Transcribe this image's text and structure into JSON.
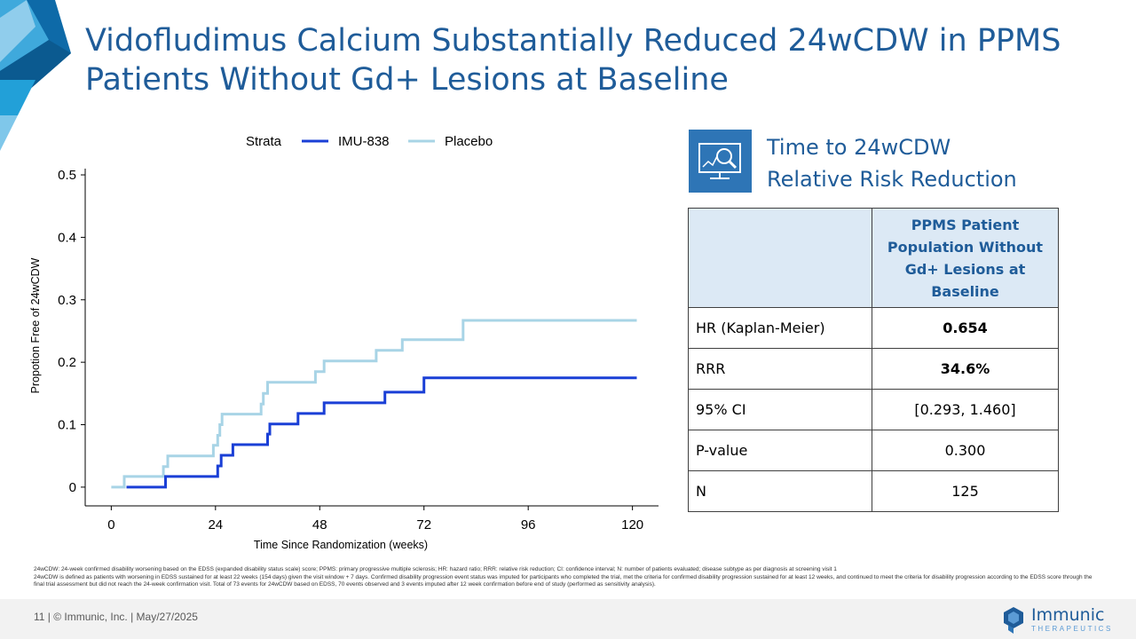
{
  "slide": {
    "title": "Vidofludimus Calcium Substantially Reduced 24wCDW in PPMS Patients Without Gd+ Lesions at Baseline"
  },
  "panel": {
    "title_line1": "Time to 24wCDW",
    "title_line2": "Relative Risk Reduction",
    "icon": "monitor-magnifier-icon"
  },
  "table": {
    "header_col2": "PPMS Patient Population Without Gd+ Lesions at Baseline",
    "rows": [
      {
        "label": "HR (Kaplan-Meier)",
        "value": "0.654",
        "bold": true
      },
      {
        "label": "RRR",
        "value": "34.6%",
        "bold": true
      },
      {
        "label": "95% CI",
        "value": "[0.293, 1.460]",
        "bold": false
      },
      {
        "label": "P-value",
        "value": "0.300",
        "bold": false
      },
      {
        "label": "N",
        "value": "125",
        "bold": false
      }
    ]
  },
  "chart_data": {
    "type": "line",
    "step": true,
    "legend_title": "Strata",
    "legend_position": "top",
    "xlabel": "Time Since Randomization (weeks)",
    "ylabel": "Propotion Free of 24wCDW",
    "xlim": [
      -6,
      126
    ],
    "ylim": [
      -0.03,
      0.51
    ],
    "xticks": [
      0,
      24,
      48,
      72,
      96,
      120
    ],
    "xtick_labels": [
      "0",
      "24",
      "48",
      "72",
      "96",
      "120"
    ],
    "yticks": [
      0,
      0.1,
      0.2,
      0.3,
      0.4,
      0.5
    ],
    "ytick_labels": [
      "0",
      "0.1",
      "0.2",
      "0.3",
      "0.4",
      "0.5"
    ],
    "series": [
      {
        "name": "IMU-838",
        "color": "#1a3fd6",
        "points": [
          [
            3.5,
            0
          ],
          [
            12.5,
            0
          ],
          [
            12.5,
            0.017
          ],
          [
            24.5,
            0.017
          ],
          [
            24.5,
            0.034
          ],
          [
            25.3,
            0.034
          ],
          [
            25.3,
            0.051
          ],
          [
            28,
            0.051
          ],
          [
            28,
            0.068
          ],
          [
            36,
            0.068
          ],
          [
            36,
            0.085
          ],
          [
            36.5,
            0.085
          ],
          [
            36.5,
            0.101
          ],
          [
            43,
            0.101
          ],
          [
            43,
            0.118
          ],
          [
            49,
            0.118
          ],
          [
            49,
            0.135
          ],
          [
            63,
            0.135
          ],
          [
            63,
            0.152
          ],
          [
            72,
            0.152
          ],
          [
            72,
            0.175
          ],
          [
            121,
            0.175
          ]
        ]
      },
      {
        "name": "Placebo",
        "color": "#a8d4e6",
        "points": [
          [
            0,
            0
          ],
          [
            3,
            0
          ],
          [
            3,
            0.017
          ],
          [
            12,
            0.017
          ],
          [
            12,
            0.033
          ],
          [
            13,
            0.033
          ],
          [
            13,
            0.05
          ],
          [
            23.5,
            0.05
          ],
          [
            23.5,
            0.067
          ],
          [
            24.5,
            0.067
          ],
          [
            24.5,
            0.083
          ],
          [
            25,
            0.083
          ],
          [
            25,
            0.1
          ],
          [
            25.5,
            0.1
          ],
          [
            25.5,
            0.117
          ],
          [
            34.5,
            0.117
          ],
          [
            34.5,
            0.133
          ],
          [
            35,
            0.133
          ],
          [
            35,
            0.15
          ],
          [
            36,
            0.15
          ],
          [
            36,
            0.168
          ],
          [
            47,
            0.168
          ],
          [
            47,
            0.185
          ],
          [
            49,
            0.185
          ],
          [
            49,
            0.202
          ],
          [
            61,
            0.202
          ],
          [
            61,
            0.219
          ],
          [
            67,
            0.219
          ],
          [
            67,
            0.236
          ],
          [
            81,
            0.236
          ],
          [
            81,
            0.267
          ],
          [
            121,
            0.267
          ]
        ]
      }
    ]
  },
  "footnotes": {
    "line1": "24wCDW: 24-week confirmed disability worsening based on the EDSS (expanded disability status scale) score; PPMS: primary progressive multiple sclerosis; HR: hazard ratio; RRR: relative risk reduction; CI: confidence interval; N: number of patients evaluated; disease subtype as per diagnosis at screening visit 1",
    "line2": "24wCDW is defined as patients with worsening in EDSS sustained for at least 22 weeks (154 days) given the visit window + 7 days. Confirmed disability progression event status was imputed for participants who completed the trial, met the criteria for confirmed disability progression sustained for at least 12 weeks, and continued to meet the criteria for disability progression according to the EDSS score through the final trial assessment but did not reach the 24-week confirmation visit. Total of 73 events for 24wCDW based on EDSS, 70 events observed and 3 events imputed after 12 week confirmation before end of study (performed as sensitivity analysis)."
  },
  "footer": {
    "text": "11  |  © Immunic, Inc.  | May/27/2025",
    "logo_name": "Immunic",
    "logo_sub": "THERAPEUTICS"
  }
}
